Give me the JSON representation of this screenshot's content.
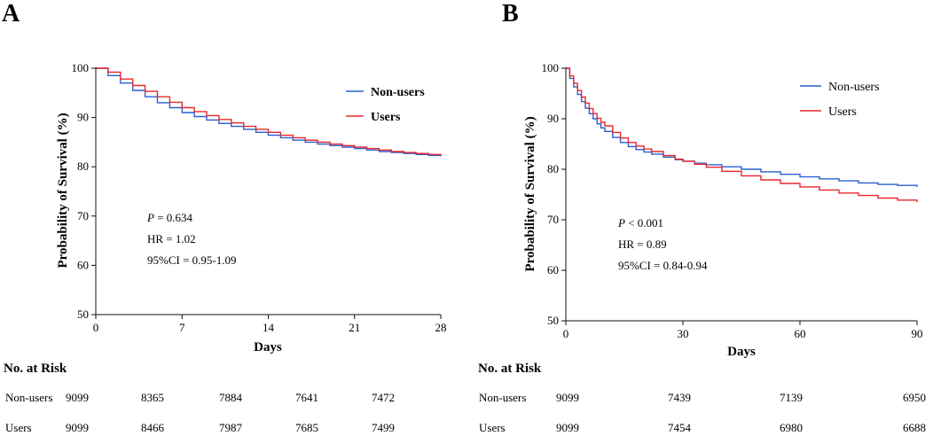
{
  "chart_data": [
    {
      "type": "line",
      "panel": "A",
      "xlabel": "Days",
      "ylabel": "Probability of Survival (%)",
      "xlim": [
        0,
        28
      ],
      "ylim": [
        50,
        100
      ],
      "xticks": [
        0,
        7,
        14,
        21,
        28
      ],
      "yticks": [
        50,
        60,
        70,
        80,
        90,
        100
      ],
      "legend": {
        "placement": "top-right",
        "entries": [
          "Non-users",
          "Users"
        ]
      },
      "series": [
        {
          "name": "Non-users",
          "color": "#2a5fd0",
          "x": [
            0,
            1,
            2,
            3,
            4,
            5,
            6,
            7,
            8,
            9,
            10,
            11,
            12,
            13,
            14,
            15,
            16,
            17,
            18,
            19,
            20,
            21,
            22,
            23,
            24,
            25,
            26,
            27,
            28
          ],
          "y": [
            100,
            98.5,
            97.0,
            95.5,
            94.2,
            93.0,
            92.0,
            91.0,
            90.2,
            89.5,
            88.8,
            88.2,
            87.6,
            87.0,
            86.4,
            85.9,
            85.4,
            85.0,
            84.6,
            84.3,
            84.0,
            83.7,
            83.4,
            83.1,
            82.9,
            82.7,
            82.5,
            82.3,
            82.1
          ]
        },
        {
          "name": "Users",
          "color": "#e8272b",
          "x": [
            0,
            1,
            2,
            3,
            4,
            5,
            6,
            7,
            8,
            9,
            10,
            11,
            12,
            13,
            14,
            15,
            16,
            17,
            18,
            19,
            20,
            21,
            22,
            23,
            24,
            25,
            26,
            27,
            28
          ],
          "y": [
            100,
            99.2,
            97.8,
            96.5,
            95.3,
            94.2,
            93.1,
            92.0,
            91.2,
            90.4,
            89.6,
            88.9,
            88.2,
            87.6,
            87.0,
            86.4,
            85.9,
            85.4,
            85.0,
            84.6,
            84.3,
            84.0,
            83.7,
            83.4,
            83.1,
            82.9,
            82.7,
            82.5,
            82.3
          ]
        }
      ],
      "annotations": {
        "p_prefix": "P",
        "p_rest": " = 0.634",
        "hr": "HR = 1.02",
        "ci": "95%CI = 0.95-1.09"
      },
      "risk_table": {
        "title": "No. at Risk",
        "rows": [
          {
            "label": "Non-users",
            "values": [
              "9099",
              "8365",
              "7884",
              "7641",
              "7472"
            ]
          },
          {
            "label": "Users",
            "values": [
              "9099",
              "8466",
              "7987",
              "7685",
              "7499"
            ]
          }
        ]
      }
    },
    {
      "type": "line",
      "panel": "B",
      "xlabel": "Days",
      "ylabel": "Probability of Survival (%)",
      "xlim": [
        0,
        90
      ],
      "ylim": [
        50,
        100
      ],
      "xticks": [
        0,
        30,
        60,
        90
      ],
      "yticks": [
        50,
        60,
        70,
        80,
        90,
        100
      ],
      "legend": {
        "placement": "top-right",
        "entries": [
          "Non-users",
          "Users"
        ]
      },
      "series": [
        {
          "name": "Non-users",
          "color": "#2a5fd0",
          "x": [
            0,
            1,
            2,
            3,
            4,
            5,
            6,
            7,
            8,
            9,
            10,
            12,
            14,
            16,
            18,
            20,
            22,
            25,
            28,
            30,
            33,
            36,
            40,
            45,
            50,
            55,
            60,
            65,
            70,
            75,
            80,
            85,
            90
          ],
          "y": [
            100,
            98.0,
            96.3,
            94.8,
            93.4,
            92.1,
            91.0,
            90.0,
            89.0,
            88.2,
            87.5,
            86.3,
            85.3,
            84.5,
            83.9,
            83.4,
            83.0,
            82.4,
            81.9,
            81.6,
            81.2,
            80.9,
            80.5,
            80.0,
            79.5,
            79.0,
            78.5,
            78.1,
            77.7,
            77.3,
            77.0,
            76.8,
            76.5
          ]
        },
        {
          "name": "Users",
          "color": "#e8272b",
          "x": [
            0,
            1,
            2,
            3,
            4,
            5,
            6,
            7,
            8,
            9,
            10,
            12,
            14,
            16,
            18,
            20,
            22,
            25,
            28,
            30,
            33,
            36,
            40,
            45,
            50,
            55,
            60,
            65,
            70,
            75,
            80,
            85,
            90
          ],
          "y": [
            100,
            98.5,
            97.0,
            95.6,
            94.3,
            93.1,
            92.0,
            91.0,
            90.1,
            89.3,
            88.6,
            87.3,
            86.2,
            85.3,
            84.6,
            84.0,
            83.5,
            82.7,
            82.0,
            81.6,
            81.0,
            80.4,
            79.6,
            78.7,
            77.9,
            77.2,
            76.5,
            75.9,
            75.3,
            74.8,
            74.3,
            73.9,
            73.5
          ]
        }
      ],
      "annotations": {
        "p_prefix": "P",
        "p_rest": " < 0.001",
        "hr": "HR = 0.89",
        "ci": "95%CI = 0.84-0.94"
      },
      "risk_table": {
        "title": "No. at Risk",
        "rows": [
          {
            "label": "Non-users",
            "values": [
              "9099",
              "7439",
              "7139",
              "6950"
            ]
          },
          {
            "label": "Users",
            "values": [
              "9099",
              "7454",
              "6980",
              "6688"
            ]
          }
        ]
      }
    }
  ]
}
